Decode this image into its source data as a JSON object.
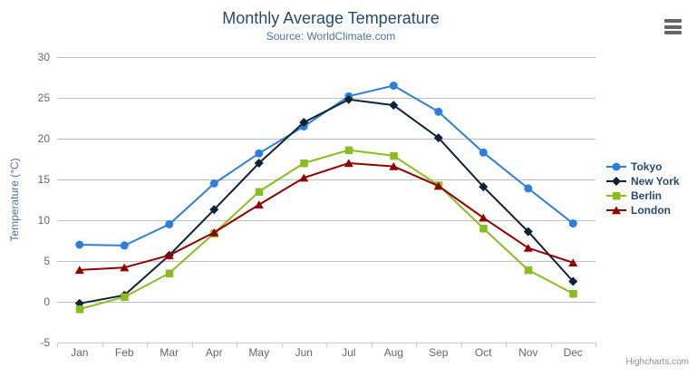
{
  "chart": {
    "credits": "Highcharts.com",
    "export_menu_icon": "hamburger"
  },
  "colors": {
    "background": "#ffffff",
    "title": "#274b6d",
    "subtitle": "#4d759e",
    "axis_title": "#4d759e",
    "tick_label": "#666666",
    "grid_line": "#c0c0c0",
    "axis_line": "#c0d0e0",
    "legend_text": "#274b6d",
    "credits_text": "#909090",
    "export_icon": "#666666"
  },
  "chart_data": {
    "type": "line",
    "title": "Monthly Average Temperature",
    "subtitle": "Source: WorldClimate.com",
    "xlabel": "",
    "ylabel": "Temperature (°C)",
    "ylim": [
      -5,
      30
    ],
    "ytick_interval": 5,
    "grid": true,
    "legend_position": "right",
    "categories": [
      "Jan",
      "Feb",
      "Mar",
      "Apr",
      "May",
      "Jun",
      "Jul",
      "Aug",
      "Sep",
      "Oct",
      "Nov",
      "Dec"
    ],
    "series": [
      {
        "name": "Tokyo",
        "color": "#2f7ed8",
        "marker": "circle",
        "values": [
          7.0,
          6.9,
          9.5,
          14.5,
          18.2,
          21.5,
          25.2,
          26.5,
          23.3,
          18.3,
          13.9,
          9.6
        ]
      },
      {
        "name": "New York",
        "color": "#0d233a",
        "marker": "diamond",
        "values": [
          -0.2,
          0.8,
          5.7,
          11.3,
          17.0,
          22.0,
          24.8,
          24.1,
          20.1,
          14.1,
          8.6,
          2.5
        ]
      },
      {
        "name": "Berlin",
        "color": "#8bbc21",
        "marker": "square",
        "values": [
          -0.9,
          0.6,
          3.5,
          8.4,
          13.5,
          17.0,
          18.6,
          17.9,
          14.3,
          9.0,
          3.9,
          1.0
        ]
      },
      {
        "name": "London",
        "color": "#910000",
        "marker": "triangle",
        "values": [
          3.9,
          4.2,
          5.7,
          8.5,
          11.9,
          15.2,
          17.0,
          16.6,
          14.2,
          10.3,
          6.6,
          4.8
        ]
      }
    ]
  }
}
